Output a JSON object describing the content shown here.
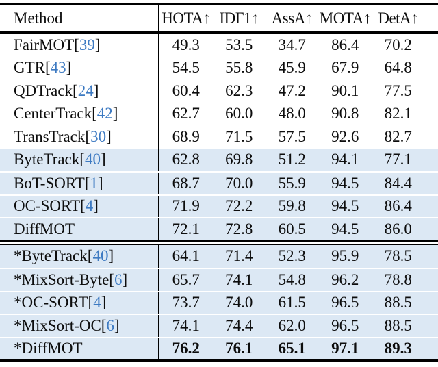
{
  "table": {
    "columns": [
      "Method",
      "HOTA↑",
      "IDF1↑",
      "AssA↑",
      "MOTA↑",
      "DetA↑"
    ],
    "rows": [
      {
        "method": "FairMOT",
        "cite": "39",
        "values": [
          "49.3",
          "53.5",
          "34.7",
          "86.4",
          "70.2"
        ],
        "highlight": false,
        "bold": false,
        "section": 1
      },
      {
        "method": "GTR",
        "cite": "43",
        "values": [
          "54.5",
          "55.8",
          "45.9",
          "67.9",
          "64.8"
        ],
        "highlight": false,
        "bold": false,
        "section": 1
      },
      {
        "method": "QDTrack",
        "cite": "24",
        "values": [
          "60.4",
          "62.3",
          "47.2",
          "90.1",
          "77.5"
        ],
        "highlight": false,
        "bold": false,
        "section": 1
      },
      {
        "method": "CenterTrack",
        "cite": "42",
        "values": [
          "62.7",
          "60.0",
          "48.0",
          "90.8",
          "82.1"
        ],
        "highlight": false,
        "bold": false,
        "section": 1
      },
      {
        "method": "TransTrack",
        "cite": "30",
        "values": [
          "68.9",
          "71.5",
          "57.5",
          "92.6",
          "82.7"
        ],
        "highlight": false,
        "bold": false,
        "section": 1
      },
      {
        "method": "ByteTrack",
        "cite": "40",
        "values": [
          "62.8",
          "69.8",
          "51.2",
          "94.1",
          "77.1"
        ],
        "highlight": true,
        "bold": false,
        "section": 1
      },
      {
        "method": "BoT-SORT",
        "cite": "1",
        "values": [
          "68.7",
          "70.0",
          "55.9",
          "94.5",
          "84.4"
        ],
        "highlight": true,
        "bold": false,
        "section": 1
      },
      {
        "method": "OC-SORT",
        "cite": "4",
        "values": [
          "71.9",
          "72.2",
          "59.8",
          "94.5",
          "86.4"
        ],
        "highlight": true,
        "bold": false,
        "section": 1
      },
      {
        "method": "DiffMOT",
        "cite": null,
        "values": [
          "72.1",
          "72.8",
          "60.5",
          "94.5",
          "86.0"
        ],
        "highlight": true,
        "bold": false,
        "section": 1
      },
      {
        "method": "*ByteTrack",
        "cite": "40",
        "values": [
          "64.1",
          "71.4",
          "52.3",
          "95.9",
          "78.5"
        ],
        "highlight": true,
        "bold": false,
        "section": 2
      },
      {
        "method": "*MixSort-Byte",
        "cite": "6",
        "values": [
          "65.7",
          "74.1",
          "54.8",
          "96.2",
          "78.8"
        ],
        "highlight": true,
        "bold": false,
        "section": 2
      },
      {
        "method": "*OC-SORT",
        "cite": "4",
        "values": [
          "73.7",
          "74.0",
          "61.5",
          "96.5",
          "88.5"
        ],
        "highlight": true,
        "bold": false,
        "section": 2
      },
      {
        "method": "*MixSort-OC",
        "cite": "6",
        "values": [
          "74.1",
          "74.4",
          "62.0",
          "96.5",
          "88.5"
        ],
        "highlight": true,
        "bold": false,
        "section": 2
      },
      {
        "method": "*DiffMOT",
        "cite": null,
        "values": [
          "76.2",
          "76.1",
          "65.1",
          "97.1",
          "89.3"
        ],
        "highlight": true,
        "bold": true,
        "section": 2
      }
    ]
  },
  "colors": {
    "highlight_row": "#dce8f4",
    "citation_link": "#3d7ac2",
    "rule": "#000000",
    "text": "#0d0d0d"
  }
}
